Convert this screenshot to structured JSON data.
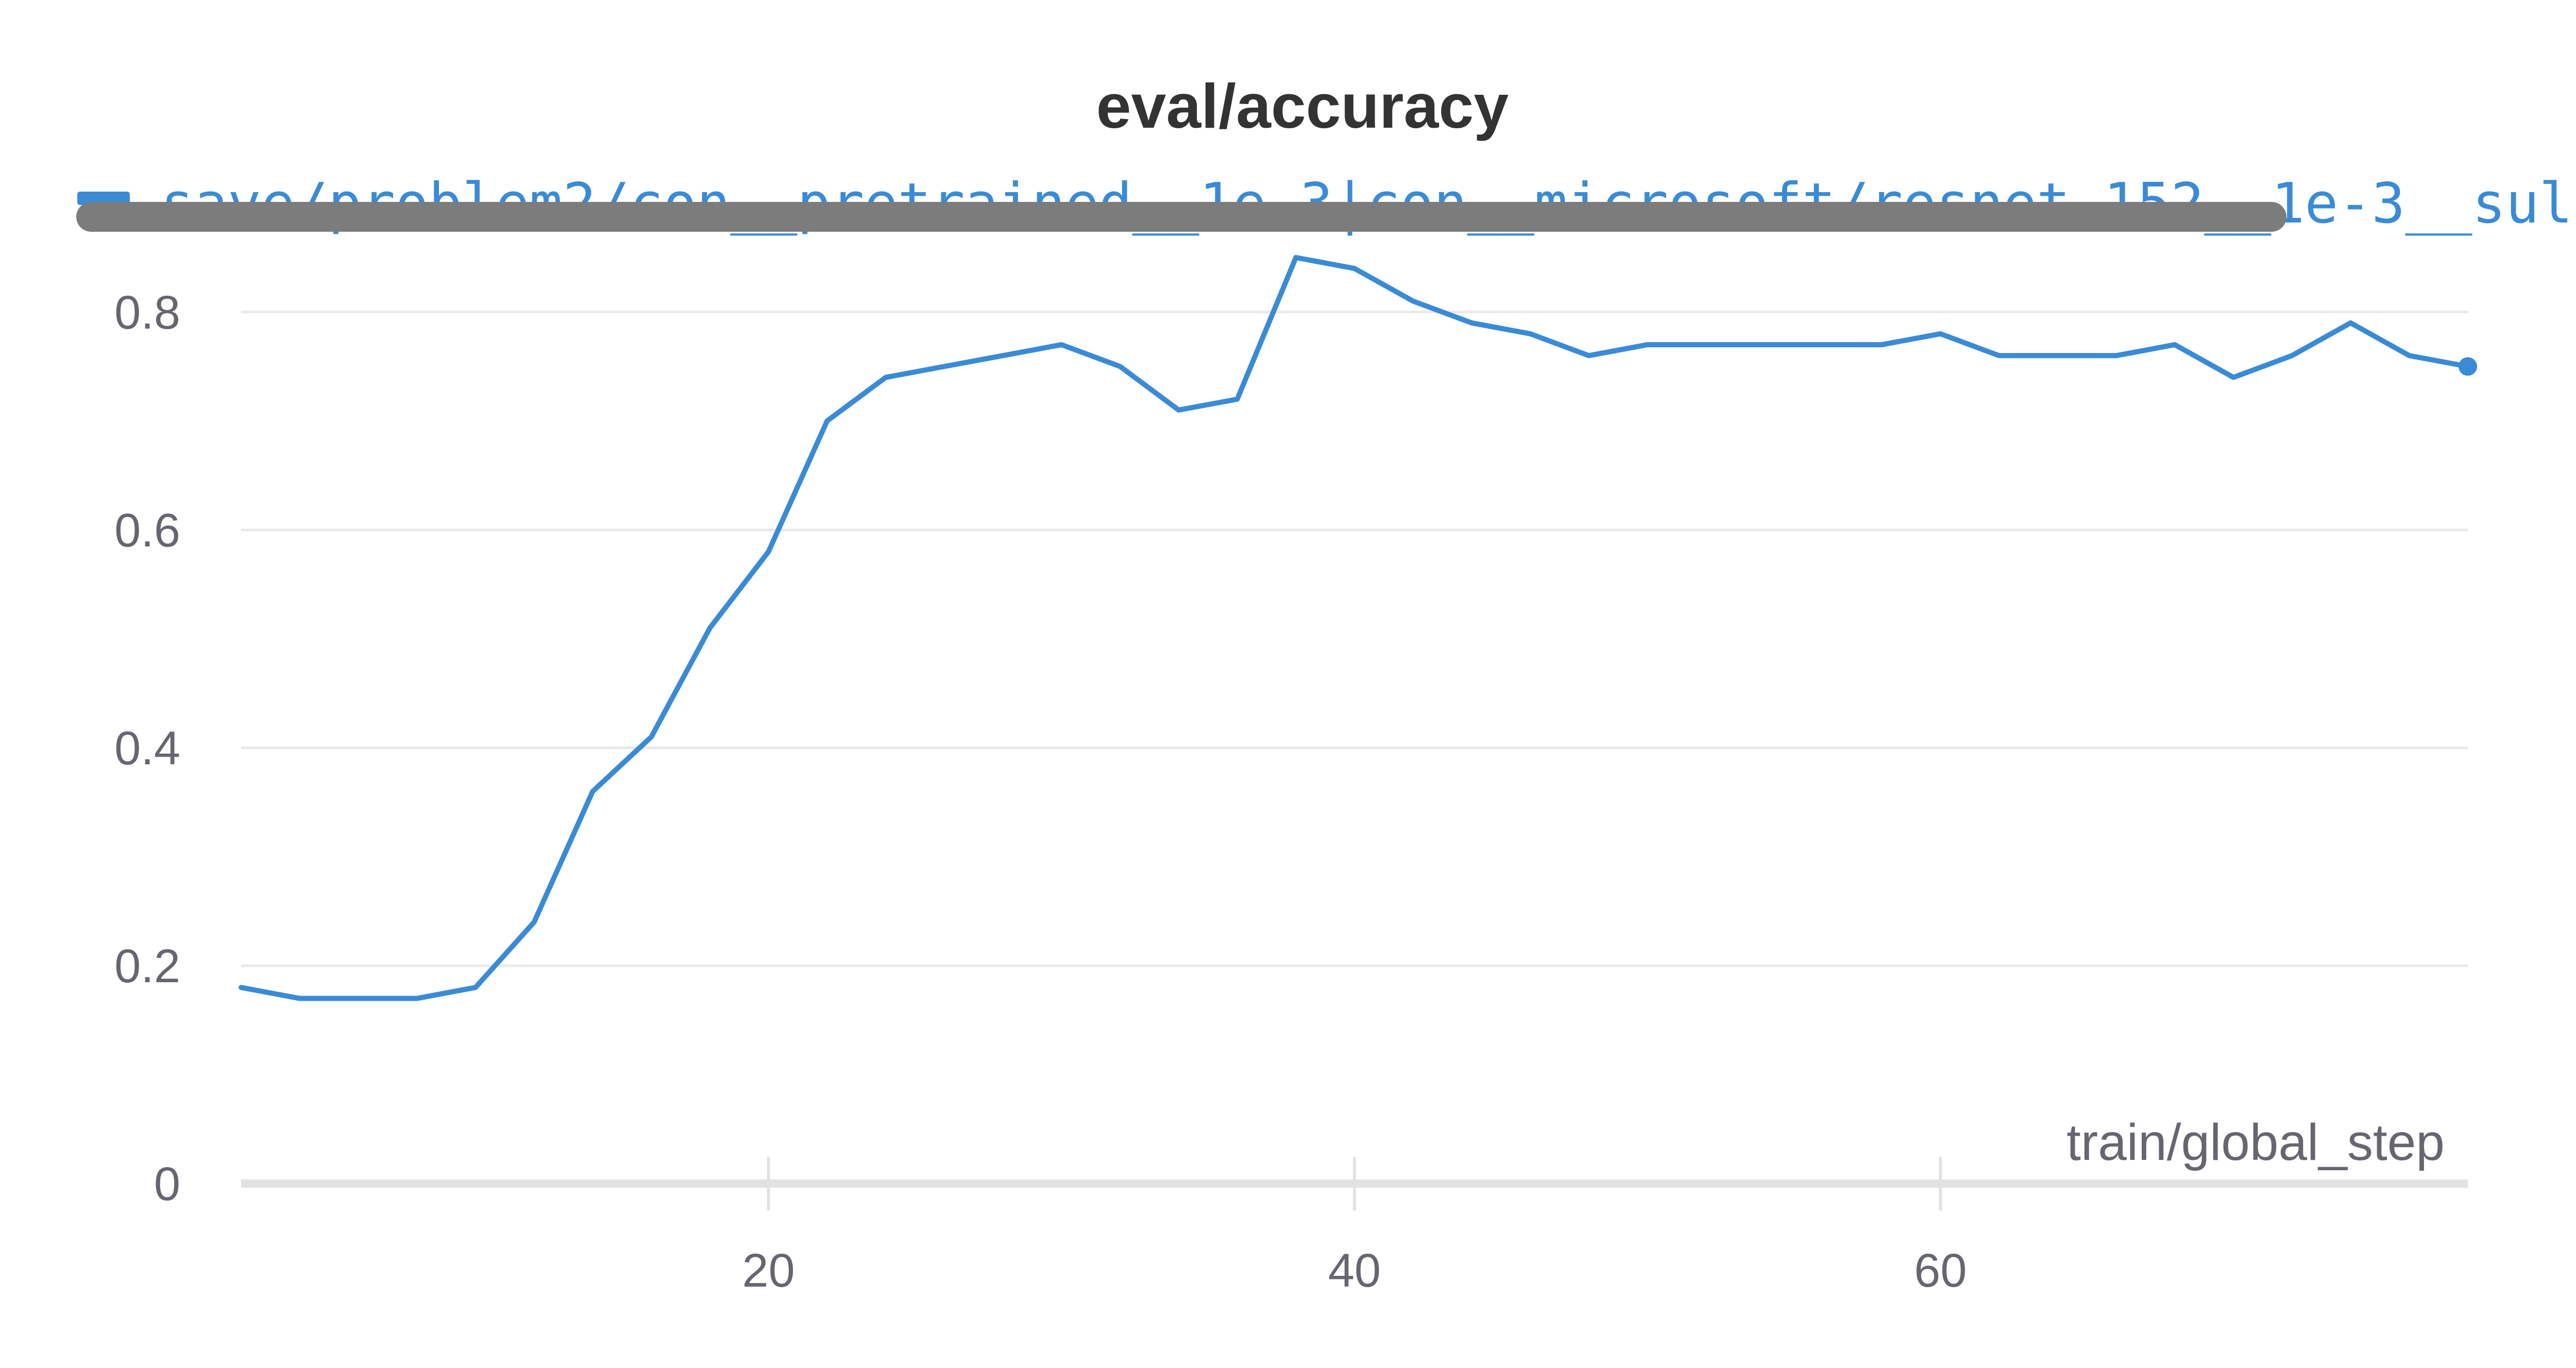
{
  "colors": {
    "series": "#3a8bd6",
    "redaction": "#7c7c7c"
  },
  "legend": {
    "run_name": "save/problem2/con__pretrained__1e-3|con__microsoft/resnet-152__1e-3__sul",
    "swatch_icon": "line-swatch-icon",
    "redaction_icon": "redaction-bar"
  },
  "chart_data": {
    "type": "line",
    "title": "eval/accuracy",
    "xlabel": "train/global_step",
    "ylabel": "",
    "xlim": [
      2,
      78
    ],
    "ylim": [
      0,
      0.85
    ],
    "x_ticks": [
      20,
      40,
      60
    ],
    "x_tick_labels": [
      "20",
      "40",
      "60"
    ],
    "y_ticks": [
      0,
      0.2,
      0.4,
      0.6,
      0.8
    ],
    "y_tick_labels": [
      "0",
      "0.2",
      "0.4",
      "0.6",
      "0.8"
    ],
    "grid": true,
    "legend_position": "top-left",
    "series": [
      {
        "name": "save/problem2/con__pretrained__1e-3|con__microsoft/resnet-152__1e-3__sul",
        "x": [
          2,
          4,
          6,
          8,
          10,
          12,
          14,
          16,
          18,
          20,
          22,
          24,
          26,
          28,
          30,
          32,
          34,
          36,
          38,
          40,
          42,
          44,
          46,
          48,
          50,
          52,
          54,
          56,
          58,
          60,
          62,
          64,
          66,
          68,
          70,
          72,
          74,
          76,
          78
        ],
        "y": [
          0.18,
          0.17,
          0.17,
          0.17,
          0.18,
          0.24,
          0.36,
          0.41,
          0.51,
          0.58,
          0.7,
          0.74,
          0.75,
          0.76,
          0.77,
          0.75,
          0.71,
          0.72,
          0.85,
          0.84,
          0.81,
          0.79,
          0.78,
          0.76,
          0.77,
          0.77,
          0.77,
          0.77,
          0.77,
          0.78,
          0.76,
          0.76,
          0.76,
          0.77,
          0.74,
          0.76,
          0.79,
          0.76,
          0.75
        ]
      }
    ]
  }
}
